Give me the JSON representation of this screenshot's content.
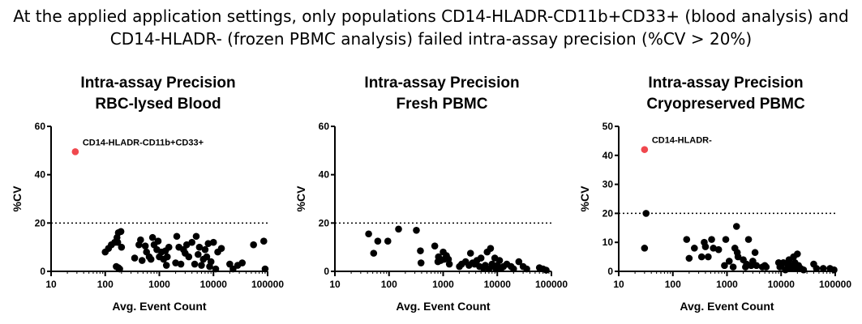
{
  "headline": {
    "line1": "At the applied application settings, only populations CD14-HLADR-CD11b+CD33+ (blood analysis) and",
    "line2": "CD14-HLADR- (frozen PBMC analysis) failed intra-assay precision (%CV > 20%)"
  },
  "colors": {
    "point": "#000000",
    "highlight": "#f0484e",
    "axis": "#000000"
  },
  "chart_data": [
    {
      "type": "scatter",
      "title_line1": "Intra-assay Precision",
      "title_line2": "RBC-lysed Blood",
      "xlabel": "Avg. Event Count",
      "ylabel": "%CV",
      "xscale": "log",
      "xlim": [
        10,
        100000
      ],
      "ylim": [
        0,
        60
      ],
      "xticks": [
        10,
        100,
        1000,
        10000,
        100000
      ],
      "xtick_labels": [
        "10",
        "100",
        "1000",
        "10000",
        "100000"
      ],
      "yticks": [
        0,
        20,
        40,
        60
      ],
      "ytick_labels": [
        "0",
        "20",
        "40",
        "60"
      ],
      "threshold": 20,
      "highlight_points": [
        {
          "x": 28,
          "y": 49.5,
          "label": "CD14-HLADR-CD11b+CD33+"
        }
      ],
      "points": [
        [
          100,
          8
        ],
        [
          115,
          9.5
        ],
        [
          130,
          11
        ],
        [
          150,
          12
        ],
        [
          165,
          14
        ],
        [
          175,
          16
        ],
        [
          195,
          16.5
        ],
        [
          170,
          12
        ],
        [
          160,
          2
        ],
        [
          175,
          1.5
        ],
        [
          185,
          1
        ],
        [
          200,
          10
        ],
        [
          350,
          5.5
        ],
        [
          420,
          11
        ],
        [
          450,
          13
        ],
        [
          480,
          4.5
        ],
        [
          550,
          10.5
        ],
        [
          580,
          8
        ],
        [
          650,
          6
        ],
        [
          700,
          5
        ],
        [
          750,
          14
        ],
        [
          800,
          11
        ],
        [
          900,
          9
        ],
        [
          950,
          12.5
        ],
        [
          1000,
          6
        ],
        [
          1100,
          8
        ],
        [
          1200,
          5
        ],
        [
          1300,
          8.5
        ],
        [
          1350,
          2.5
        ],
        [
          1400,
          6
        ],
        [
          1500,
          10
        ],
        [
          2000,
          3.5
        ],
        [
          2100,
          14.5
        ],
        [
          2300,
          10
        ],
        [
          2500,
          3
        ],
        [
          2800,
          9
        ],
        [
          3000,
          7.5
        ],
        [
          3200,
          11
        ],
        [
          3500,
          6
        ],
        [
          4000,
          12
        ],
        [
          4500,
          3
        ],
        [
          4800,
          14.5
        ],
        [
          5200,
          7
        ],
        [
          5500,
          10
        ],
        [
          6000,
          2.5
        ],
        [
          6500,
          5
        ],
        [
          7000,
          9
        ],
        [
          7500,
          6
        ],
        [
          8000,
          11.5
        ],
        [
          8500,
          2
        ],
        [
          9000,
          4
        ],
        [
          10000,
          12
        ],
        [
          11000,
          1
        ],
        [
          12000,
          8
        ],
        [
          14000,
          9.5
        ],
        [
          20000,
          3
        ],
        [
          23000,
          1
        ],
        [
          28000,
          2.5
        ],
        [
          34000,
          3.5
        ],
        [
          55000,
          11
        ],
        [
          85000,
          12.5
        ],
        [
          90000,
          1
        ]
      ]
    },
    {
      "type": "scatter",
      "title_line1": "Intra-assay Precision",
      "title_line2": "Fresh PBMC",
      "xlabel": "Avg. Event Count",
      "ylabel": "%CV",
      "xscale": "log",
      "xlim": [
        10,
        100000
      ],
      "ylim": [
        0,
        60
      ],
      "xticks": [
        10,
        100,
        1000,
        10000,
        100000
      ],
      "xtick_labels": [
        "10",
        "100",
        "1000",
        "10000",
        "100000"
      ],
      "yticks": [
        0,
        20,
        40,
        60
      ],
      "ytick_labels": [
        "0",
        "20",
        "40",
        "60"
      ],
      "threshold": 20,
      "highlight_points": [],
      "points": [
        [
          42,
          15.5
        ],
        [
          52,
          7.5
        ],
        [
          62,
          12.5
        ],
        [
          95,
          12.5
        ],
        [
          150,
          17.5
        ],
        [
          320,
          17
        ],
        [
          380,
          8.5
        ],
        [
          390,
          3.5
        ],
        [
          700,
          10.5
        ],
        [
          800,
          4
        ],
        [
          820,
          6
        ],
        [
          900,
          4.5
        ],
        [
          1000,
          8
        ],
        [
          1050,
          5
        ],
        [
          1150,
          6.5
        ],
        [
          1250,
          5
        ],
        [
          1300,
          3
        ],
        [
          2000,
          2
        ],
        [
          2200,
          3
        ],
        [
          2600,
          4
        ],
        [
          3000,
          2.5
        ],
        [
          3200,
          7.5
        ],
        [
          3500,
          3.5
        ],
        [
          3800,
          3
        ],
        [
          4200,
          4.5
        ],
        [
          4700,
          2
        ],
        [
          5000,
          5.5
        ],
        [
          5500,
          1.5
        ],
        [
          6000,
          2.5
        ],
        [
          6500,
          8
        ],
        [
          7000,
          1
        ],
        [
          7500,
          9.5
        ],
        [
          8000,
          3
        ],
        [
          8500,
          2
        ],
        [
          9000,
          5.5
        ],
        [
          9500,
          1
        ],
        [
          10000,
          2.5
        ],
        [
          11000,
          4.5
        ],
        [
          12000,
          1.5
        ],
        [
          13000,
          2
        ],
        [
          15000,
          3
        ],
        [
          18000,
          2
        ],
        [
          20000,
          1
        ],
        [
          25000,
          4
        ],
        [
          30000,
          2
        ],
        [
          35000,
          1
        ],
        [
          60000,
          1.5
        ],
        [
          70000,
          1
        ],
        [
          80000,
          0.5
        ]
      ]
    },
    {
      "type": "scatter",
      "title_line1": "Intra-assay Precision",
      "title_line2": "Cryopreserved PBMC",
      "xlabel": "Avg. Event Count",
      "ylabel": "%CV",
      "xscale": "log",
      "xlim": [
        10,
        100000
      ],
      "ylim": [
        0,
        50
      ],
      "xticks": [
        10,
        100,
        1000,
        10000,
        100000
      ],
      "xtick_labels": [
        "10",
        "100",
        "1000",
        "10000",
        "100000"
      ],
      "yticks": [
        0,
        10,
        20,
        30,
        40,
        50
      ],
      "ytick_labels": [
        "0",
        "10",
        "20",
        "30",
        "40",
        "50"
      ],
      "threshold": 20,
      "highlight_points": [
        {
          "x": 30,
          "y": 42,
          "label": "CD14-HLADR-"
        }
      ],
      "points": [
        [
          30,
          8
        ],
        [
          32,
          20
        ],
        [
          180,
          11
        ],
        [
          200,
          4.5
        ],
        [
          250,
          8
        ],
        [
          340,
          5
        ],
        [
          380,
          10
        ],
        [
          400,
          8.5
        ],
        [
          450,
          5
        ],
        [
          520,
          11
        ],
        [
          560,
          8
        ],
        [
          700,
          7.5
        ],
        [
          900,
          2
        ],
        [
          950,
          11
        ],
        [
          1100,
          3.5
        ],
        [
          1300,
          1.5
        ],
        [
          1400,
          8
        ],
        [
          1500,
          15.5
        ],
        [
          1550,
          6.5
        ],
        [
          1600,
          5
        ],
        [
          2000,
          4
        ],
        [
          2200,
          1.5
        ],
        [
          2300,
          2.5
        ],
        [
          2500,
          11
        ],
        [
          2800,
          2
        ],
        [
          3000,
          3.5
        ],
        [
          3300,
          6.5
        ],
        [
          3500,
          2
        ],
        [
          4500,
          1.5
        ],
        [
          5000,
          2
        ],
        [
          5300,
          1.5
        ],
        [
          9000,
          3
        ],
        [
          9500,
          1.5
        ],
        [
          10000,
          2
        ],
        [
          11000,
          3
        ],
        [
          12000,
          0.5
        ],
        [
          13000,
          2.5
        ],
        [
          14000,
          4
        ],
        [
          15000,
          1
        ],
        [
          16000,
          2
        ],
        [
          17000,
          5
        ],
        [
          18000,
          3
        ],
        [
          19000,
          1
        ],
        [
          20000,
          6
        ],
        [
          21000,
          2
        ],
        [
          23000,
          1
        ],
        [
          26000,
          0.5
        ],
        [
          40000,
          2.5
        ],
        [
          45000,
          1
        ],
        [
          60000,
          1
        ],
        [
          80000,
          1
        ],
        [
          95000,
          0.5
        ]
      ]
    }
  ]
}
